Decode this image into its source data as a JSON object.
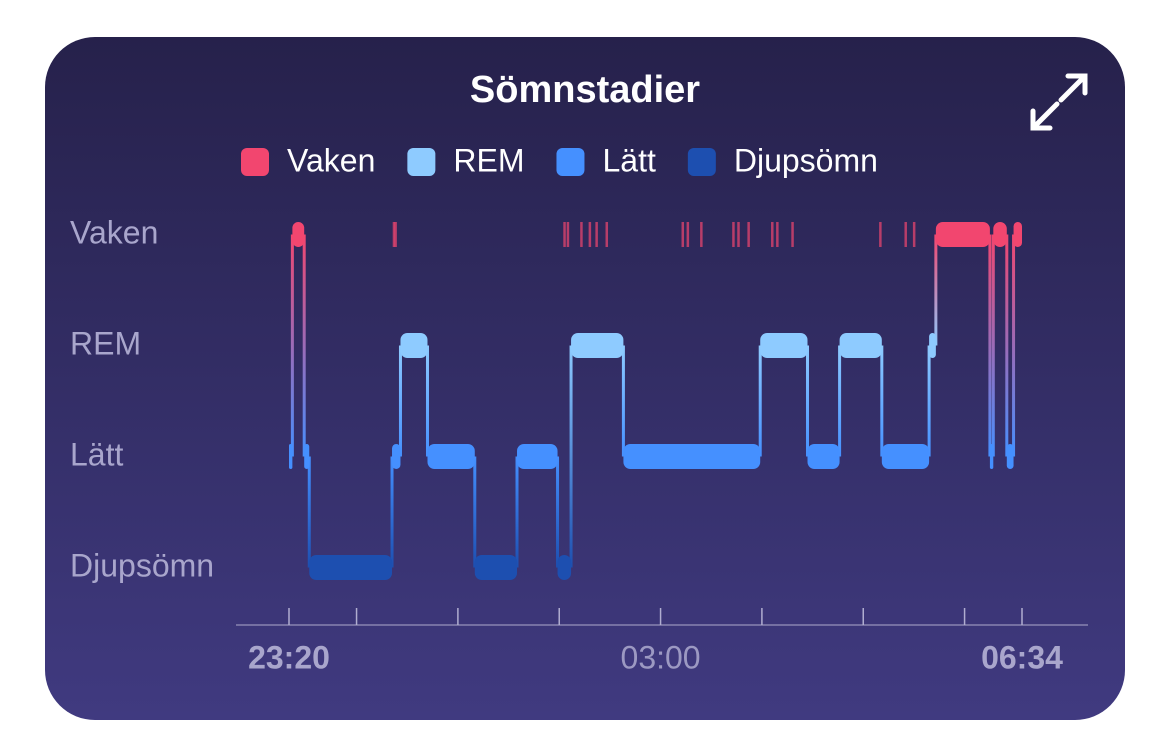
{
  "chart_data": {
    "type": "sleep-stages",
    "title": "Sömnstadier",
    "categories": [
      "Vaken",
      "REM",
      "Lätt",
      "Djupsömn"
    ],
    "colors": [
      "#f2466f",
      "#8ecbff",
      "#4590ff",
      "#1d4fb0"
    ],
    "segments": [
      {
        "start": "23:20",
        "end": "23:22",
        "stage": "Lätt"
      },
      {
        "start": "23:22",
        "end": "23:29",
        "stage": "Vaken"
      },
      {
        "start": "23:29",
        "end": "23:32",
        "stage": "Lätt"
      },
      {
        "start": "23:32",
        "end": "00:21",
        "stage": "Djupsömn"
      },
      {
        "start": "00:21",
        "end": "00:26",
        "stage": "Lätt"
      },
      {
        "start": "00:26",
        "end": "00:42",
        "stage": "REM"
      },
      {
        "start": "00:42",
        "end": "01:10",
        "stage": "Lätt"
      },
      {
        "start": "01:10",
        "end": "01:35",
        "stage": "Djupsömn"
      },
      {
        "start": "01:35",
        "end": "01:59",
        "stage": "Lätt"
      },
      {
        "start": "01:59",
        "end": "02:07",
        "stage": "Djupsömn"
      },
      {
        "start": "02:07",
        "end": "02:38",
        "stage": "REM"
      },
      {
        "start": "02:38",
        "end": "03:59",
        "stage": "Lätt"
      },
      {
        "start": "03:59",
        "end": "04:27",
        "stage": "REM"
      },
      {
        "start": "04:27",
        "end": "04:46",
        "stage": "Lätt"
      },
      {
        "start": "04:46",
        "end": "05:11",
        "stage": "REM"
      },
      {
        "start": "05:11",
        "end": "05:39",
        "stage": "Lätt"
      },
      {
        "start": "05:39",
        "end": "05:43",
        "stage": "REM"
      },
      {
        "start": "05:43",
        "end": "06:15",
        "stage": "Vaken"
      },
      {
        "start": "06:15",
        "end": "06:17",
        "stage": "Lätt"
      },
      {
        "start": "06:17",
        "end": "06:25",
        "stage": "Vaken"
      },
      {
        "start": "06:25",
        "end": "06:29",
        "stage": "Lätt"
      },
      {
        "start": "06:29",
        "end": "06:34",
        "stage": "Vaken"
      }
    ],
    "short_wakes": [
      "00:22",
      "00:23",
      "02:03",
      "02:05",
      "02:13",
      "02:18",
      "02:22",
      "02:28",
      "03:13",
      "03:16",
      "03:24",
      "03:43",
      "03:46",
      "03:52",
      "04:06",
      "04:09",
      "04:18",
      "05:10",
      "05:25",
      "05:30"
    ],
    "xlim": [
      "23:20",
      "06:34"
    ],
    "xticks": [
      "23:20",
      {
        "value": "00:00",
        "label": null
      },
      {
        "value": "01:00",
        "label": null
      },
      {
        "value": "02:00",
        "label": null
      },
      "03:00",
      {
        "value": "04:00",
        "label": null
      },
      {
        "value": "05:00",
        "label": null
      },
      {
        "value": "06:00",
        "label": null
      },
      "06:34"
    ]
  }
}
